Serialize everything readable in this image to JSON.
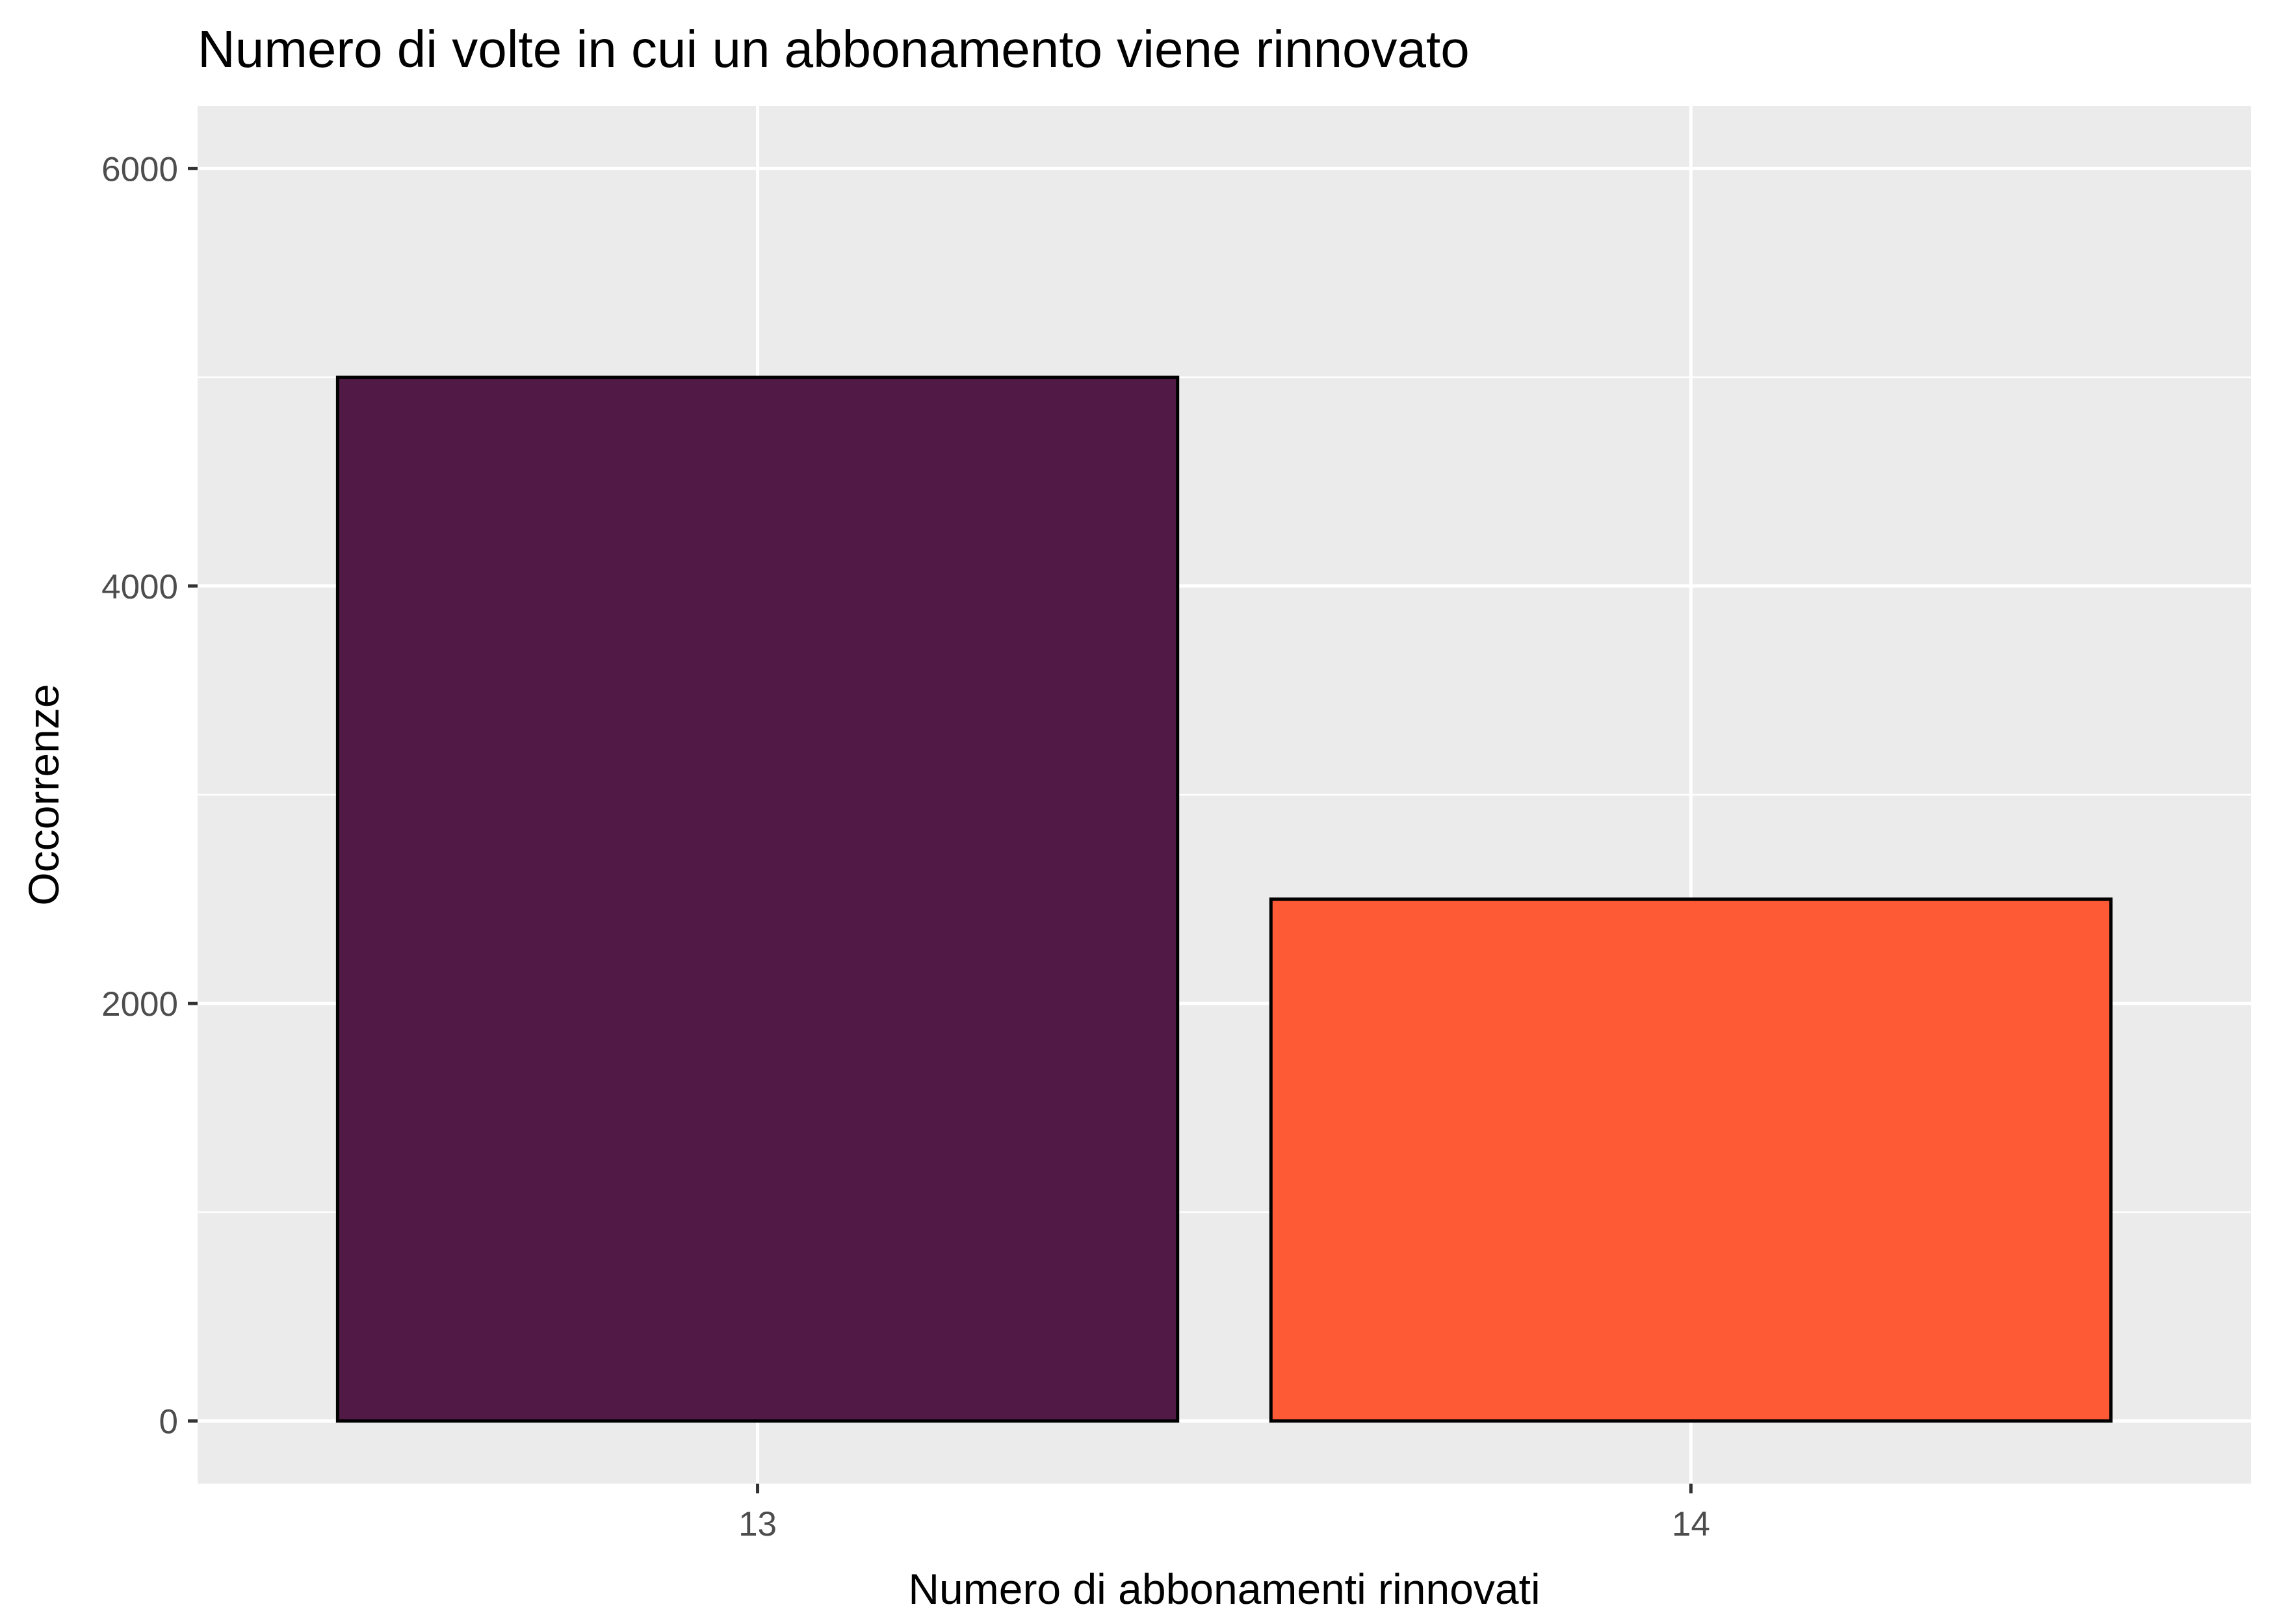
{
  "chart_data": {
    "type": "bar",
    "title": "Numero di volte in cui un abbonamento viene rinnovato",
    "xlabel": "Numero di abbonamenti rinnovati",
    "ylabel": "Occorrenze",
    "categories": [
      "13",
      "14"
    ],
    "values": [
      5000,
      2500
    ],
    "colors": [
      "#511945",
      "#ff5a36"
    ],
    "bar_outline": "#000000",
    "y_ticks": [
      0,
      2000,
      4000,
      6000
    ],
    "y_tick_labels": [
      "0",
      "2000",
      "4000",
      "6000"
    ],
    "ylim": [
      -300,
      6300
    ],
    "grid": true,
    "panel_background": "#ebebeb",
    "legend": "none"
  }
}
